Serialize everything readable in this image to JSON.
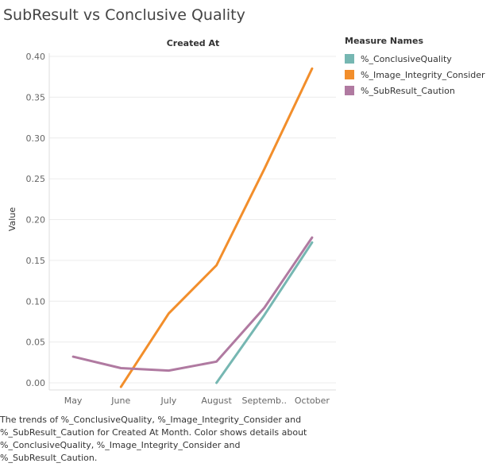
{
  "title": "SubResult vs Conclusive Quality",
  "caption": {
    "line1": "The trends of %_ConclusiveQuality, %_Image_Integrity_Consider and",
    "line2": "%_SubResult_Caution for Created At Month.  Color shows details about",
    "line3": "%_ConclusiveQuality, %_Image_Integrity_Consider and",
    "line4": "%_SubResult_Caution."
  },
  "chart_data": {
    "type": "line",
    "title": "SubResult vs Conclusive Quality",
    "column_header": "Created At",
    "ylabel": "Value",
    "ylim": [
      0,
      0.4
    ],
    "yticks": [
      "0.00",
      "0.05",
      "0.10",
      "0.15",
      "0.20",
      "0.25",
      "0.30",
      "0.35",
      "0.40"
    ],
    "categories": [
      "May",
      "June",
      "July",
      "August",
      "Septemb..",
      "October"
    ],
    "grid": true,
    "legend_title": "Measure Names",
    "legend_position": "right",
    "series": [
      {
        "name": "%_ConclusiveQuality",
        "color": "#76b7b2",
        "values": [
          null,
          null,
          null,
          0.0,
          0.083,
          0.172
        ]
      },
      {
        "name": "%_Image_Integrity_Consider",
        "color": "#f28e2b",
        "values": [
          null,
          -0.005,
          0.085,
          0.144,
          0.262,
          0.385
        ]
      },
      {
        "name": "%_SubResult_Caution",
        "color": "#b07aa1",
        "values": [
          0.032,
          0.018,
          0.015,
          0.026,
          0.092,
          0.178
        ]
      }
    ]
  }
}
